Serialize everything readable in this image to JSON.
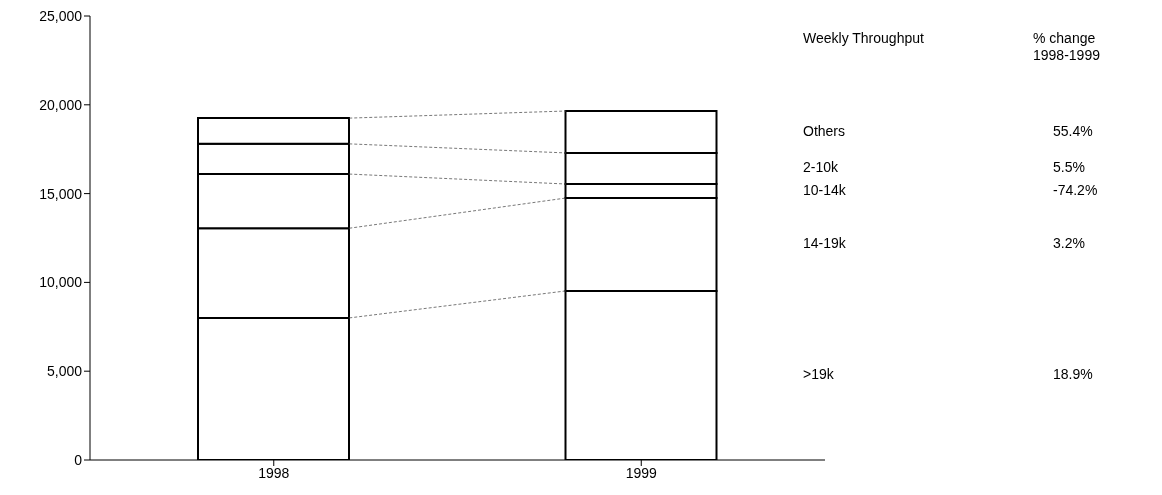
{
  "chart_data": {
    "type": "bar",
    "stacked": true,
    "categories": [
      "1998",
      "1999"
    ],
    "series": [
      {
        "name": ">19k",
        "color": "#ffffff",
        "values": [
          8000,
          9520
        ]
      },
      {
        "name": "14-19k",
        "color": "#ffffff",
        "values": [
          5050,
          5230
        ]
      },
      {
        "name": "10-14k",
        "color": "#ffffff",
        "values": [
          3050,
          790
        ]
      },
      {
        "name": "2-10k",
        "color": "#ffffff",
        "values": [
          1700,
          1750
        ]
      },
      {
        "name": "Others",
        "color": "#ffffff",
        "values": [
          1450,
          2360
        ]
      }
    ],
    "ylim": [
      0,
      25000
    ],
    "yticks": [
      0,
      {
        "value": 5000,
        "label": "5,000"
      },
      {
        "value": 10000,
        "label": "10,000"
      },
      {
        "value": 15000,
        "label": "15,000"
      },
      {
        "value": 20000,
        "label": "20,000"
      },
      {
        "value": 25000,
        "label": "25,000"
      }
    ],
    "grid": false,
    "legend": "right",
    "legend_title": "Weekly Throughput",
    "annotations": [
      "% change 1998-1999",
      "18.9%",
      "3.2%",
      "-74.2%",
      "5.5%",
      "55.4%"
    ]
  }
}
